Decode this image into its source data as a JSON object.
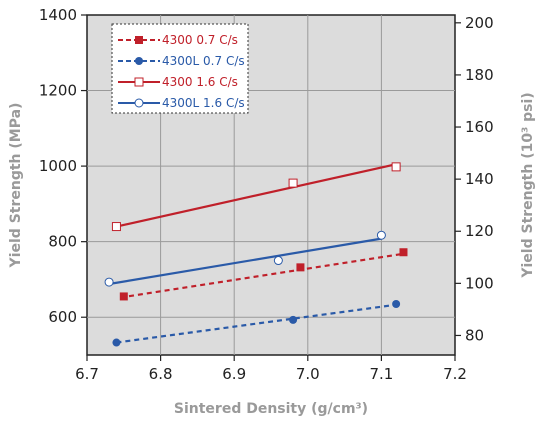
{
  "chart_data": {
    "type": "line",
    "xlabel": "Sintered Density (g/cm³)",
    "ylabel": "Yield Strength (MPa)",
    "y2label": "Yield Strength (10³ psi)",
    "xlim": [
      6.7,
      7.2
    ],
    "ylim": [
      500,
      1400
    ],
    "y2lim": [
      72.5,
      203.0
    ],
    "x_ticks": [
      "6.7",
      "6.8",
      "6.9",
      "7.0",
      "7.1",
      "7.2"
    ],
    "y_ticks": [
      "600",
      "800",
      "1000",
      "1200",
      "1400"
    ],
    "y2_ticks": [
      "80",
      "100",
      "120",
      "140",
      "160",
      "180",
      "200"
    ],
    "grid": true,
    "legend_position": "top-left",
    "series": [
      {
        "name": "4300 0.7 C/s",
        "color": "#c0202a",
        "style": "dashed",
        "marker": "filled-square",
        "points": [
          [
            6.75,
            655
          ],
          [
            6.99,
            732
          ],
          [
            7.13,
            772
          ]
        ],
        "fit": [
          [
            6.745,
            652
          ],
          [
            7.13,
            768
          ]
        ]
      },
      {
        "name": "4300L 0.7 C/s",
        "color": "#2a5aa8",
        "style": "dashed",
        "marker": "filled-circle",
        "points": [
          [
            6.74,
            533
          ],
          [
            6.98,
            593
          ],
          [
            7.12,
            635
          ]
        ],
        "fit": [
          [
            6.74,
            533
          ],
          [
            7.12,
            633
          ]
        ]
      },
      {
        "name": "4300 1.6 C/s",
        "color": "#c0202a",
        "style": "solid",
        "marker": "open-square",
        "points": [
          [
            6.74,
            840
          ],
          [
            6.98,
            955
          ],
          [
            7.12,
            998
          ]
        ],
        "fit": [
          [
            6.74,
            840
          ],
          [
            7.12,
            1005
          ]
        ]
      },
      {
        "name": "4300L 1.6 C/s",
        "color": "#2a5aa8",
        "style": "solid",
        "marker": "open-circle",
        "points": [
          [
            6.73,
            693
          ],
          [
            6.96,
            750
          ],
          [
            7.1,
            817
          ]
        ],
        "fit": [
          [
            6.73,
            688
          ],
          [
            7.1,
            808
          ]
        ]
      }
    ]
  }
}
